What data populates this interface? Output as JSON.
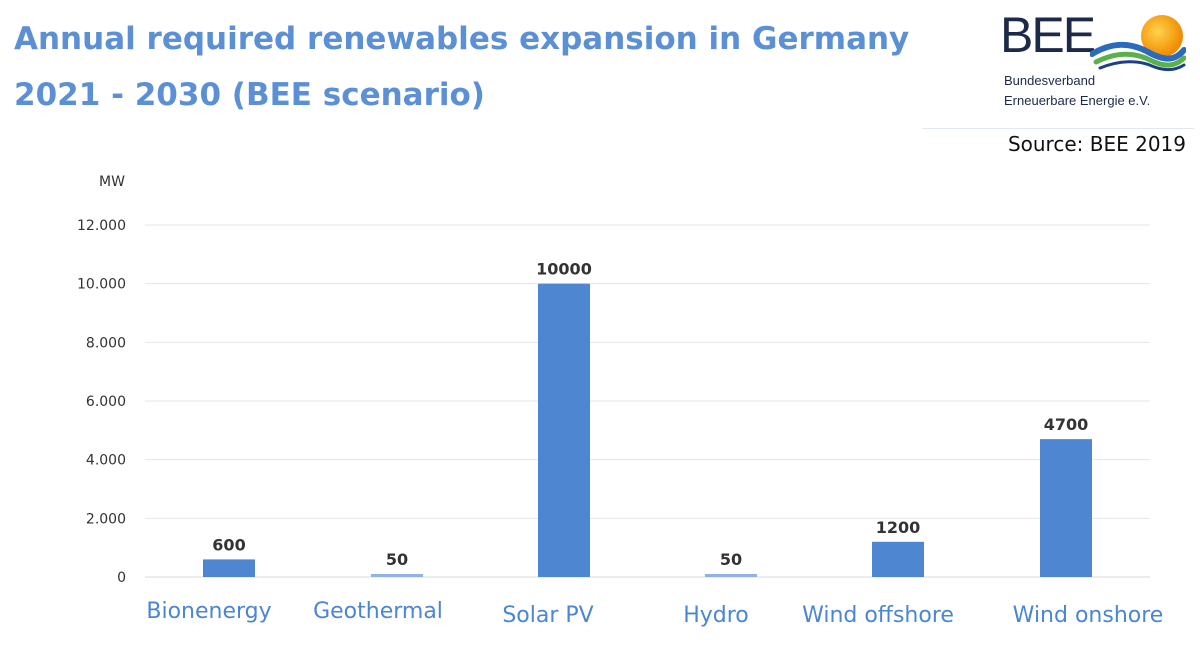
{
  "header": {
    "title_line1": "Annual required renewables expansion in Germany",
    "title_line2": "2021 - 2030  (BEE scenario)",
    "source": "Source: BEE 2019"
  },
  "logo": {
    "word": "BEE",
    "line1": "Bundesverband",
    "line2": "Erneuerbare Energie e.V."
  },
  "colors": {
    "title": "#5b8fd6",
    "bar": "#4f86d2",
    "bar_faint": "#8fb3e6",
    "category_label": "#4a86d4",
    "grid": "#e6e6e6"
  },
  "chart_data": {
    "type": "bar",
    "title": "Annual required renewables expansion in Germany 2021 - 2030  (BEE scenario)",
    "ylabel": "MW",
    "xlabel": "",
    "ylim": [
      0,
      12000
    ],
    "yticks": [
      0,
      2000,
      4000,
      6000,
      8000,
      10000,
      12000
    ],
    "ytick_labels": [
      "0",
      "2.000",
      "4.000",
      "6.000",
      "8.000",
      "10.000",
      "12.000"
    ],
    "grid": true,
    "legend": "none",
    "categories": [
      "Bionenergy",
      "Geothermal",
      "Solar PV",
      "Hydro",
      "Wind offshore",
      "Wind onshore"
    ],
    "values": [
      600,
      50,
      10000,
      50,
      1200,
      4700
    ],
    "data_labels": [
      "600",
      "50",
      "10000",
      "50",
      "1200",
      "4700"
    ]
  }
}
